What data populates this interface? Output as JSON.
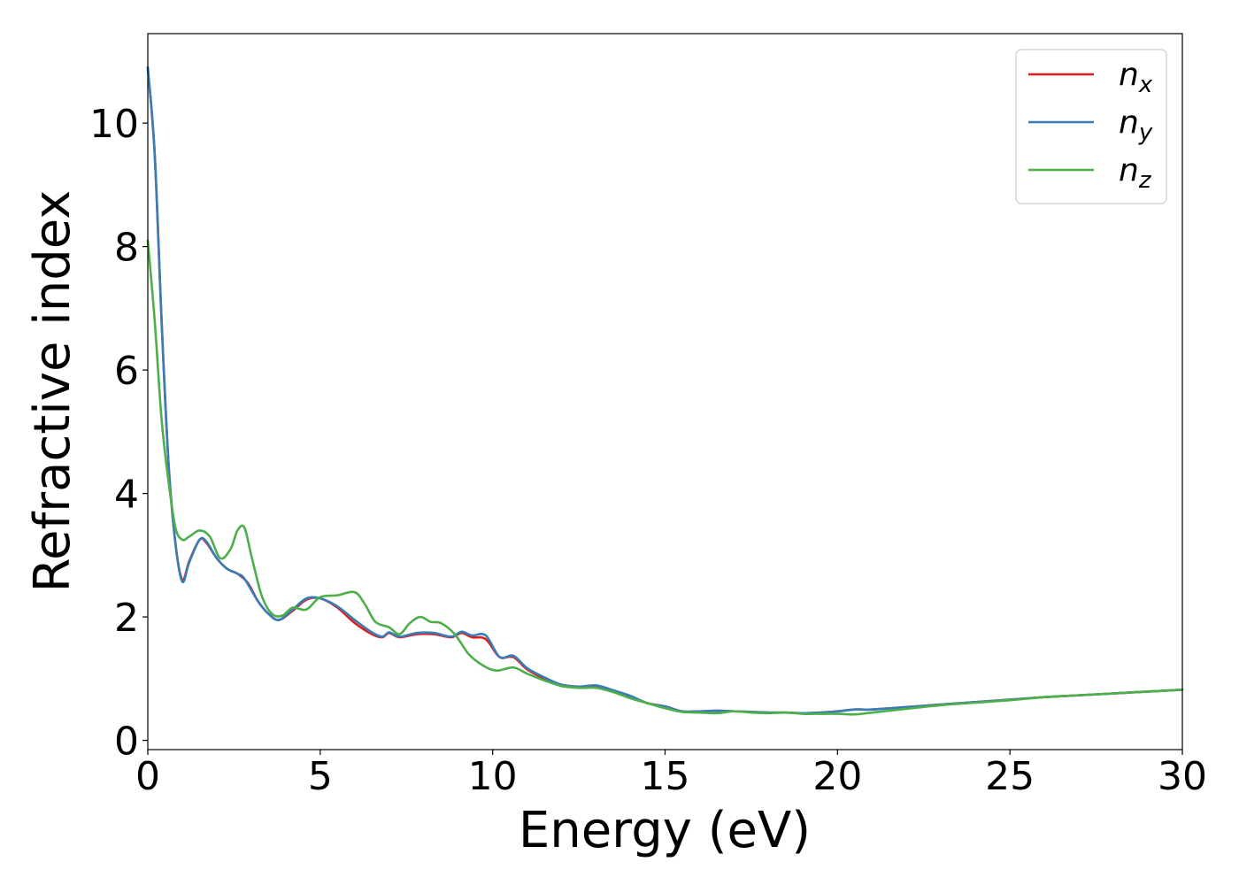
{
  "chart_data": {
    "type": "line",
    "xlabel": "Energy (eV)",
    "ylabel": "Refractive index",
    "xlim": [
      0,
      30
    ],
    "ylim": [
      -0.15,
      11.45
    ],
    "xticks": [
      0,
      5,
      10,
      15,
      20,
      25,
      30
    ],
    "yticks": [
      0,
      2,
      4,
      6,
      8,
      10
    ],
    "xtick_labels": [
      "0",
      "5",
      "10",
      "15",
      "20",
      "25",
      "30"
    ],
    "ytick_labels": [
      "0",
      "2",
      "4",
      "6",
      "8",
      "10"
    ],
    "grid": false,
    "legend_position": "top-right",
    "series": [
      {
        "name_base": "n",
        "name_sub": "x",
        "color": "#e41a1c",
        "points": [
          [
            0,
            10.9
          ],
          [
            0.2,
            9.5
          ],
          [
            0.4,
            6.8
          ],
          [
            0.6,
            4.5
          ],
          [
            0.8,
            3.2
          ],
          [
            1.0,
            2.6
          ],
          [
            1.2,
            2.9
          ],
          [
            1.5,
            3.25
          ],
          [
            1.7,
            3.2
          ],
          [
            2.0,
            2.95
          ],
          [
            2.3,
            2.78
          ],
          [
            2.6,
            2.7
          ],
          [
            2.9,
            2.55
          ],
          [
            3.2,
            2.25
          ],
          [
            3.5,
            2.05
          ],
          [
            3.8,
            1.95
          ],
          [
            4.2,
            2.1
          ],
          [
            4.6,
            2.28
          ],
          [
            5.0,
            2.3
          ],
          [
            5.5,
            2.15
          ],
          [
            6.0,
            1.9
          ],
          [
            6.5,
            1.72
          ],
          [
            6.8,
            1.67
          ],
          [
            7.0,
            1.74
          ],
          [
            7.3,
            1.67
          ],
          [
            7.8,
            1.72
          ],
          [
            8.3,
            1.72
          ],
          [
            8.8,
            1.67
          ],
          [
            9.1,
            1.74
          ],
          [
            9.4,
            1.67
          ],
          [
            9.8,
            1.64
          ],
          [
            10.2,
            1.35
          ],
          [
            10.6,
            1.35
          ],
          [
            11.0,
            1.15
          ],
          [
            11.5,
            1.0
          ],
          [
            12.0,
            0.9
          ],
          [
            12.5,
            0.87
          ],
          [
            13.0,
            0.88
          ],
          [
            13.5,
            0.8
          ],
          [
            14.0,
            0.7
          ],
          [
            14.5,
            0.6
          ],
          [
            15.0,
            0.55
          ],
          [
            15.5,
            0.47
          ],
          [
            16.0,
            0.47
          ],
          [
            16.5,
            0.48
          ],
          [
            17.0,
            0.47
          ],
          [
            17.5,
            0.46
          ],
          [
            18.0,
            0.45
          ],
          [
            18.5,
            0.45
          ],
          [
            19.0,
            0.44
          ],
          [
            19.5,
            0.45
          ],
          [
            20.0,
            0.47
          ],
          [
            20.5,
            0.5
          ],
          [
            21.0,
            0.5
          ],
          [
            22.0,
            0.54
          ],
          [
            23.0,
            0.58
          ],
          [
            24.0,
            0.62
          ],
          [
            25.0,
            0.66
          ],
          [
            26.0,
            0.7
          ],
          [
            27.0,
            0.73
          ],
          [
            28.0,
            0.76
          ],
          [
            29.0,
            0.79
          ],
          [
            30.0,
            0.82
          ]
        ]
      },
      {
        "name_base": "n",
        "name_sub": "y",
        "color": "#377eb8",
        "points": [
          [
            0,
            10.9
          ],
          [
            0.2,
            9.5
          ],
          [
            0.4,
            6.8
          ],
          [
            0.6,
            4.5
          ],
          [
            0.8,
            3.2
          ],
          [
            1.0,
            2.57
          ],
          [
            1.2,
            2.88
          ],
          [
            1.5,
            3.25
          ],
          [
            1.7,
            3.22
          ],
          [
            2.0,
            2.95
          ],
          [
            2.3,
            2.78
          ],
          [
            2.6,
            2.7
          ],
          [
            2.8,
            2.62
          ],
          [
            3.2,
            2.25
          ],
          [
            3.5,
            2.05
          ],
          [
            3.8,
            1.95
          ],
          [
            4.2,
            2.12
          ],
          [
            4.6,
            2.3
          ],
          [
            5.0,
            2.3
          ],
          [
            5.5,
            2.17
          ],
          [
            6.0,
            1.95
          ],
          [
            6.5,
            1.75
          ],
          [
            6.8,
            1.68
          ],
          [
            7.0,
            1.75
          ],
          [
            7.3,
            1.68
          ],
          [
            7.8,
            1.74
          ],
          [
            8.3,
            1.74
          ],
          [
            8.8,
            1.68
          ],
          [
            9.1,
            1.76
          ],
          [
            9.4,
            1.7
          ],
          [
            9.8,
            1.7
          ],
          [
            10.2,
            1.35
          ],
          [
            10.6,
            1.37
          ],
          [
            11.0,
            1.17
          ],
          [
            11.5,
            1.02
          ],
          [
            12.0,
            0.9
          ],
          [
            12.5,
            0.87
          ],
          [
            13.0,
            0.89
          ],
          [
            13.5,
            0.81
          ],
          [
            14.0,
            0.72
          ],
          [
            14.5,
            0.6
          ],
          [
            15.0,
            0.55
          ],
          [
            15.5,
            0.47
          ],
          [
            16.0,
            0.47
          ],
          [
            16.5,
            0.48
          ],
          [
            17.0,
            0.47
          ],
          [
            17.5,
            0.46
          ],
          [
            18.0,
            0.45
          ],
          [
            18.5,
            0.45
          ],
          [
            19.0,
            0.44
          ],
          [
            19.5,
            0.45
          ],
          [
            20.0,
            0.47
          ],
          [
            20.5,
            0.5
          ],
          [
            21.0,
            0.5
          ],
          [
            22.0,
            0.54
          ],
          [
            23.0,
            0.58
          ],
          [
            24.0,
            0.62
          ],
          [
            25.0,
            0.66
          ],
          [
            26.0,
            0.7
          ],
          [
            27.0,
            0.73
          ],
          [
            28.0,
            0.76
          ],
          [
            29.0,
            0.79
          ],
          [
            30.0,
            0.82
          ]
        ]
      },
      {
        "name_base": "n",
        "name_sub": "z",
        "color": "#4daf4a",
        "points": [
          [
            0,
            8.1
          ],
          [
            0.2,
            6.8
          ],
          [
            0.4,
            5.2
          ],
          [
            0.6,
            4.2
          ],
          [
            0.8,
            3.45
          ],
          [
            1.0,
            3.25
          ],
          [
            1.2,
            3.3
          ],
          [
            1.5,
            3.4
          ],
          [
            1.8,
            3.3
          ],
          [
            2.1,
            2.95
          ],
          [
            2.4,
            3.1
          ],
          [
            2.6,
            3.4
          ],
          [
            2.8,
            3.45
          ],
          [
            3.0,
            3.0
          ],
          [
            3.3,
            2.35
          ],
          [
            3.6,
            2.05
          ],
          [
            3.9,
            2.02
          ],
          [
            4.2,
            2.15
          ],
          [
            4.6,
            2.12
          ],
          [
            5.0,
            2.32
          ],
          [
            5.5,
            2.35
          ],
          [
            6.0,
            2.4
          ],
          [
            6.3,
            2.2
          ],
          [
            6.6,
            1.92
          ],
          [
            7.0,
            1.83
          ],
          [
            7.3,
            1.72
          ],
          [
            7.6,
            1.9
          ],
          [
            7.9,
            2.0
          ],
          [
            8.2,
            1.92
          ],
          [
            8.5,
            1.9
          ],
          [
            8.9,
            1.72
          ],
          [
            9.3,
            1.4
          ],
          [
            9.7,
            1.22
          ],
          [
            10.1,
            1.13
          ],
          [
            10.6,
            1.18
          ],
          [
            11.0,
            1.08
          ],
          [
            11.5,
            0.97
          ],
          [
            12.0,
            0.88
          ],
          [
            12.5,
            0.85
          ],
          [
            13.0,
            0.85
          ],
          [
            13.5,
            0.78
          ],
          [
            14.0,
            0.68
          ],
          [
            14.5,
            0.6
          ],
          [
            15.0,
            0.52
          ],
          [
            15.5,
            0.46
          ],
          [
            16.0,
            0.45
          ],
          [
            16.5,
            0.44
          ],
          [
            17.0,
            0.47
          ],
          [
            17.5,
            0.45
          ],
          [
            18.0,
            0.44
          ],
          [
            18.5,
            0.45
          ],
          [
            19.0,
            0.43
          ],
          [
            19.5,
            0.43
          ],
          [
            20.0,
            0.43
          ],
          [
            20.5,
            0.42
          ],
          [
            21.0,
            0.45
          ],
          [
            22.0,
            0.51
          ],
          [
            23.0,
            0.57
          ],
          [
            24.0,
            0.61
          ],
          [
            25.0,
            0.65
          ],
          [
            26.0,
            0.7
          ],
          [
            27.0,
            0.73
          ],
          [
            28.0,
            0.76
          ],
          [
            29.0,
            0.79
          ],
          [
            30.0,
            0.82
          ]
        ]
      }
    ]
  }
}
